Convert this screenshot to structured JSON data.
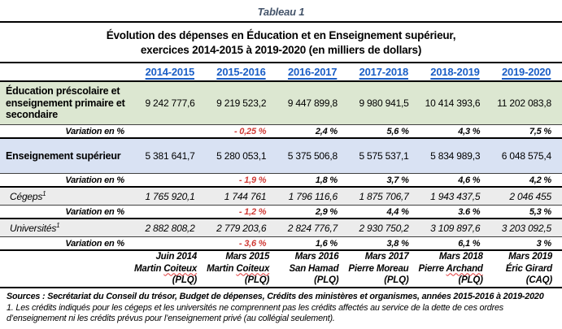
{
  "header": {
    "caption": "Tableau 1",
    "title_line1": "Évolution des dépenses en Éducation et en Enseignement supérieur,",
    "title_line2": "exercices 2014-2015 à 2019-2020 (en milliers de dollars)"
  },
  "years": [
    "2014-2015",
    "2015-2016",
    "2016-2017",
    "2017-2018",
    "2018-2019",
    "2019-2020"
  ],
  "rows": {
    "edu": {
      "label": "Éducation préscolaire et enseignement primaire et secondaire",
      "values": [
        "9 242 777,6",
        "9 219 523,2",
        "9 447 899,8",
        "9 980 941,5",
        "10 414 393,6",
        "11 202 083,8"
      ]
    },
    "edu_var": {
      "label": "Variation en %",
      "values": [
        "",
        "- 0,25 %",
        "2,4 %",
        "5,6 %",
        "4,3 %",
        "7,5 %"
      ]
    },
    "sup": {
      "label": "Enseignement supérieur",
      "values": [
        "5 381 641,7",
        "5 280 053,1",
        "5 375 506,8",
        "5 575 537,1",
        "5 834 989,3",
        "6 048 575,4"
      ]
    },
    "sup_var": {
      "label": "Variation en %",
      "values": [
        "",
        "- 1,9 %",
        "1,8 %",
        "3,7 %",
        "4,6 %",
        "4,2 %"
      ]
    },
    "cegeps": {
      "label": "Cégeps",
      "sup": "1",
      "values": [
        "1 765 920,1",
        "1 744 761",
        "1 796 116,6",
        "1 875 706,7",
        "1 943 437,5",
        "2 046 455"
      ]
    },
    "cegeps_var": {
      "label": "Variation en %",
      "values": [
        "",
        "- 1,2 %",
        "2,9 %",
        "4,4 %",
        "3.6 %",
        "5,3 %"
      ]
    },
    "univ": {
      "label": "Universités",
      "sup": "1",
      "values": [
        "2 882 808,2",
        "2 779 203,6",
        "2 824 776,7",
        "2 930 750,2",
        "3 109 897,6",
        "3 203 092,5"
      ]
    },
    "univ_var": {
      "label": "Variation en %",
      "values": [
        "",
        "- 3,6 %",
        "1,6 %",
        "3,8 %",
        "6,1 %",
        "3 %"
      ]
    }
  },
  "ministers": [
    {
      "date": "Juin 2014",
      "first": "Martin ",
      "last": "Coiteux",
      "party": "(PLQ)",
      "spellcheck_underline": true
    },
    {
      "date": "Mars 2015",
      "first": "Martin ",
      "last": "Coiteux",
      "party": "(PLQ)",
      "spellcheck_underline": true
    },
    {
      "date": "Mars 2016",
      "first": "San ",
      "last": "Hamad",
      "party": "(PLQ)",
      "spellcheck_underline": false
    },
    {
      "date": "Mars 2017",
      "first": "Pierre ",
      "last": "Moreau",
      "party": "(PLQ)",
      "spellcheck_underline": false
    },
    {
      "date": "Mars 2018",
      "first": "Pierre ",
      "last": "Archand",
      "party": "(PLQ)",
      "spellcheck_underline": true
    },
    {
      "date": "Mars 2019",
      "first": "Éric ",
      "last": "Girard",
      "party": "(CAQ)",
      "spellcheck_underline": false
    }
  ],
  "footer": {
    "sources": "Sources : Secrétariat du Conseil du trésor, Budget de dépenses, Crédits des ministères et organismes, années 2015-2016 à 2019-2020",
    "note": "1. Les crédits indiqués pour les cégeps et les universités ne comprennent pas les crédits affectés au service de la dette de ces ordres d’enseignement ni les crédits prévus pour l’enseignement privé (au collégial seulement)."
  },
  "colors": {
    "caption_slate_blue": "#44546A",
    "year_header_blue": "#1A5EC6",
    "negative_red": "#D03B36",
    "education_row_bg": "#DCE7D1",
    "superieur_row_bg": "#D9E2F3",
    "sub_row_bg": "#ECECEC"
  },
  "chart_data": {
    "type": "table",
    "title": "Tableau 1",
    "subtitle": "Évolution des dépenses en Éducation et en Enseignement supérieur, exercices 2014-2015 à 2019-2020 (en milliers de dollars)",
    "unit": "milliers de dollars",
    "columns": [
      "2014-2015",
      "2015-2016",
      "2016-2017",
      "2017-2018",
      "2018-2019",
      "2019-2020"
    ],
    "rows": [
      {
        "label": "Éducation préscolaire et enseignement primaire et secondaire",
        "values": [
          9242777.6,
          9219523.2,
          9447899.8,
          9980941.5,
          10414393.6,
          11202083.8
        ],
        "variation_pct": [
          null,
          -0.25,
          2.4,
          5.6,
          4.3,
          7.5
        ]
      },
      {
        "label": "Enseignement supérieur",
        "values": [
          5381641.7,
          5280053.1,
          5375506.8,
          5575537.1,
          5834989.3,
          6048575.4
        ],
        "variation_pct": [
          null,
          -1.9,
          1.8,
          3.7,
          4.6,
          4.2
        ]
      },
      {
        "label": "Cégeps (note 1)",
        "values": [
          1765920.1,
          1744761,
          1796116.6,
          1875706.7,
          1943437.5,
          2046455
        ],
        "variation_pct": [
          null,
          -1.2,
          2.9,
          4.4,
          3.6,
          5.3
        ]
      },
      {
        "label": "Universités (note 1)",
        "values": [
          2882808.2,
          2779203.6,
          2824776.7,
          2930750.2,
          3109897.6,
          3203092.5
        ],
        "variation_pct": [
          null,
          -3.6,
          1.6,
          3.8,
          6.1,
          3.0
        ]
      }
    ],
    "column_annotations": [
      "Juin 2014 — Martin Coiteux (PLQ)",
      "Mars 2015 — Martin Coiteux (PLQ)",
      "Mars 2016 — San Hamad (PLQ)",
      "Mars 2017 — Pierre Moreau (PLQ)",
      "Mars 2018 — Pierre Archand (PLQ)",
      "Mars 2019 — Éric Girard (CAQ)"
    ]
  }
}
